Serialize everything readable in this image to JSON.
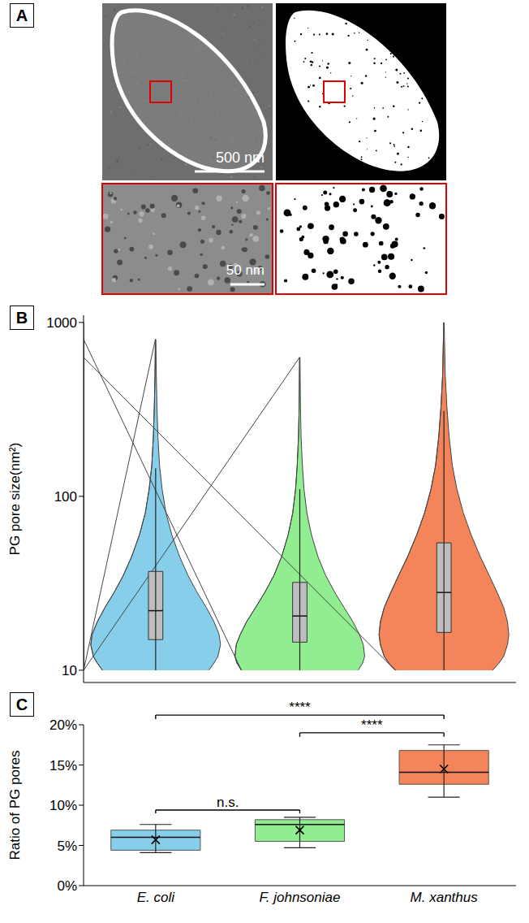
{
  "panel_a": {
    "panel_label": "A",
    "scale_bars": [
      "500 nm",
      "50 nm"
    ]
  },
  "chart_data": [
    {
      "panel_label": "B",
      "type": "violin",
      "ylabel": "PG pore size(nm²)",
      "log": "y",
      "ylim": [
        8.5,
        1100
      ],
      "yticks": [
        10,
        100,
        1000
      ],
      "tick_labels": "y",
      "colors": [
        "#87ceeb",
        "#90ee90",
        "#f4845a"
      ],
      "box": {
        "whisker_low": [
          10,
          10,
          10
        ],
        "q1": [
          15,
          14.5,
          16.5
        ],
        "median": [
          22,
          20.5,
          28
        ],
        "q3": [
          37,
          32,
          54
        ],
        "whisker_high": [
          145,
          110,
          310
        ]
      },
      "density": [
        {
          "values": [
            10,
            11,
            12,
            14,
            16,
            19,
            23,
            28,
            35,
            45,
            60,
            80,
            110,
            150,
            220,
            330,
            500,
            800
          ],
          "widths": [
            0.82,
            0.9,
            0.96,
            1.0,
            0.98,
            0.9,
            0.78,
            0.64,
            0.5,
            0.37,
            0.25,
            0.16,
            0.1,
            0.06,
            0.035,
            0.02,
            0.01,
            0.004
          ]
        },
        {
          "values": [
            10,
            11,
            12,
            14,
            16,
            19,
            23,
            28,
            35,
            45,
            60,
            80,
            110,
            150,
            220,
            330,
            630
          ],
          "widths": [
            0.9,
            0.97,
            1.0,
            0.98,
            0.92,
            0.82,
            0.68,
            0.54,
            0.4,
            0.28,
            0.18,
            0.11,
            0.065,
            0.04,
            0.02,
            0.01,
            0.003
          ]
        },
        {
          "values": [
            10,
            11,
            12,
            14,
            16,
            19,
            23,
            28,
            35,
            45,
            60,
            80,
            110,
            150,
            220,
            330,
            500,
            1000
          ],
          "widths": [
            0.75,
            0.85,
            0.92,
            0.98,
            1.0,
            0.98,
            0.92,
            0.82,
            0.7,
            0.56,
            0.42,
            0.3,
            0.2,
            0.13,
            0.08,
            0.045,
            0.02,
            0.003
          ]
        }
      ]
    },
    {
      "panel_label": "C",
      "type": "box",
      "categories": [
        "E. coli",
        "F. johnsoniae",
        "M. xanthus"
      ],
      "ylabel": "Ratio of PG pores",
      "ylim": [
        0,
        20
      ],
      "yticks": [
        {
          "value": 0,
          "label": "0%"
        },
        {
          "value": 5,
          "label": "5%"
        },
        {
          "value": 10,
          "label": "10%"
        },
        {
          "value": 15,
          "label": "15%"
        },
        {
          "value": 20,
          "label": "20%"
        }
      ],
      "colors": [
        "#87ceeb",
        "#90ee90",
        "#f4845a"
      ],
      "box": {
        "min": [
          4.1,
          4.7,
          11.0
        ],
        "q1": [
          4.4,
          5.5,
          12.6
        ],
        "median": [
          6.0,
          7.6,
          14.1
        ],
        "q3": [
          6.9,
          8.2,
          16.8
        ],
        "max": [
          7.6,
          8.5,
          17.5
        ],
        "mean": [
          5.7,
          6.9,
          14.5
        ]
      },
      "marker": "x",
      "annotations": [
        {
          "text": "****",
          "from": 0,
          "to": 2,
          "y": 21.2,
          "tip": 20.7
        },
        {
          "text": "****",
          "from": 1,
          "to": 2,
          "y": 19.0,
          "tip": 18.5
        },
        {
          "text": "n.s.",
          "from": 0,
          "to": 1,
          "y": 9.4,
          "tip": 9.0
        }
      ]
    }
  ]
}
